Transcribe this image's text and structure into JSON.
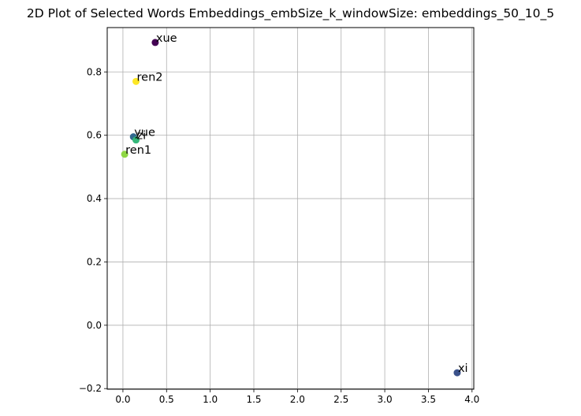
{
  "chart_data": {
    "type": "scatter",
    "title": "2D Plot of Selected Words Embeddings_embSize_k_windowSize: embeddings_50_10_5",
    "xlabel": "",
    "ylabel": "",
    "xlim": [
      -0.18,
      4.02
    ],
    "ylim": [
      -0.202,
      0.94
    ],
    "grid": true,
    "colormap": "viridis",
    "x_ticks": [
      "0.0",
      "0.5",
      "1.0",
      "1.5",
      "2.0",
      "2.5",
      "3.0",
      "3.5",
      "4.0"
    ],
    "y_ticks": [
      "−0.2",
      "0.0",
      "0.2",
      "0.4",
      "0.6",
      "0.8"
    ],
    "points": [
      {
        "label": "xue",
        "x": 0.37,
        "y": 0.893,
        "color": "#440154"
      },
      {
        "label": "ren2",
        "x": 0.15,
        "y": 0.77,
        "color": "#fde725"
      },
      {
        "label": "yue",
        "x": 0.12,
        "y": 0.595,
        "color": "#31688e"
      },
      {
        "label": "zi",
        "x": 0.15,
        "y": 0.585,
        "color": "#35b779"
      },
      {
        "label": "ren1",
        "x": 0.02,
        "y": 0.54,
        "color": "#8fd744"
      },
      {
        "label": "xi",
        "x": 3.83,
        "y": -0.15,
        "color": "#3b528b"
      }
    ]
  }
}
